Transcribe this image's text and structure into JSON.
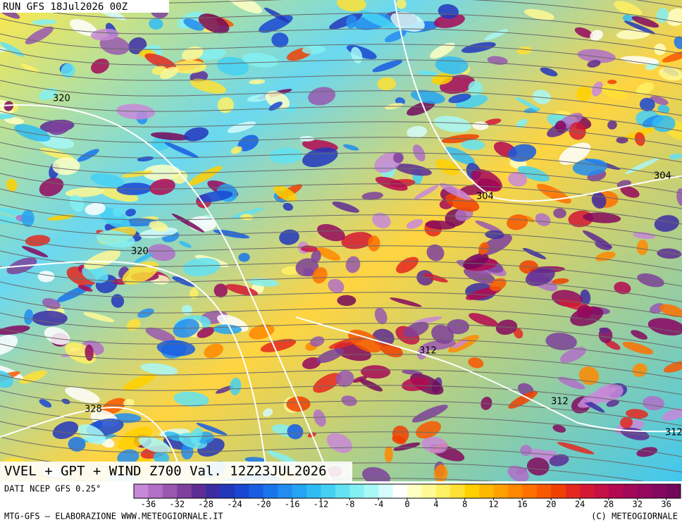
{
  "header": {
    "run": "RUN GFS 18Jul2026 00Z"
  },
  "map": {
    "contour_labels": [
      "320",
      "320",
      "304",
      "304",
      "312",
      "312",
      "312",
      "328"
    ]
  },
  "title": "VVEL + GPT + WIND Z700 Val. 12Z23JUL2026",
  "source": "DATI NCEP GFS 0.25°",
  "colorbar": {
    "lim": [
      -38,
      38
    ],
    "ticks": [
      -36,
      -32,
      -28,
      -24,
      -20,
      -16,
      -12,
      -8,
      -4,
      0,
      4,
      8,
      12,
      16,
      20,
      24,
      28,
      32,
      36
    ],
    "colors": [
      "#c888d8",
      "#b070c8",
      "#9858b0",
      "#7e409c",
      "#5e2c94",
      "#3c2ca4",
      "#2236bc",
      "#1a46d2",
      "#185ce2",
      "#1a74ea",
      "#228cf0",
      "#24a4f2",
      "#30bcf2",
      "#44d0f2",
      "#62e2f2",
      "#84f0f2",
      "#a8f8f8",
      "#d4fcfc",
      "#ffffff",
      "#ffffc4",
      "#fff894",
      "#fff064",
      "#ffe034",
      "#ffd000",
      "#ffb800",
      "#ffa000",
      "#ff8800",
      "#ff7000",
      "#f85800",
      "#f04000",
      "#e42820",
      "#d41834",
      "#c41044",
      "#b40850",
      "#a40858",
      "#94085e",
      "#84085e",
      "#74085a"
    ]
  },
  "footer": {
    "left": "MTG-GFS — ELABORAZIONE WWW.METEOGIORNALE.IT",
    "right": "(C) METEOGIORNALE"
  }
}
